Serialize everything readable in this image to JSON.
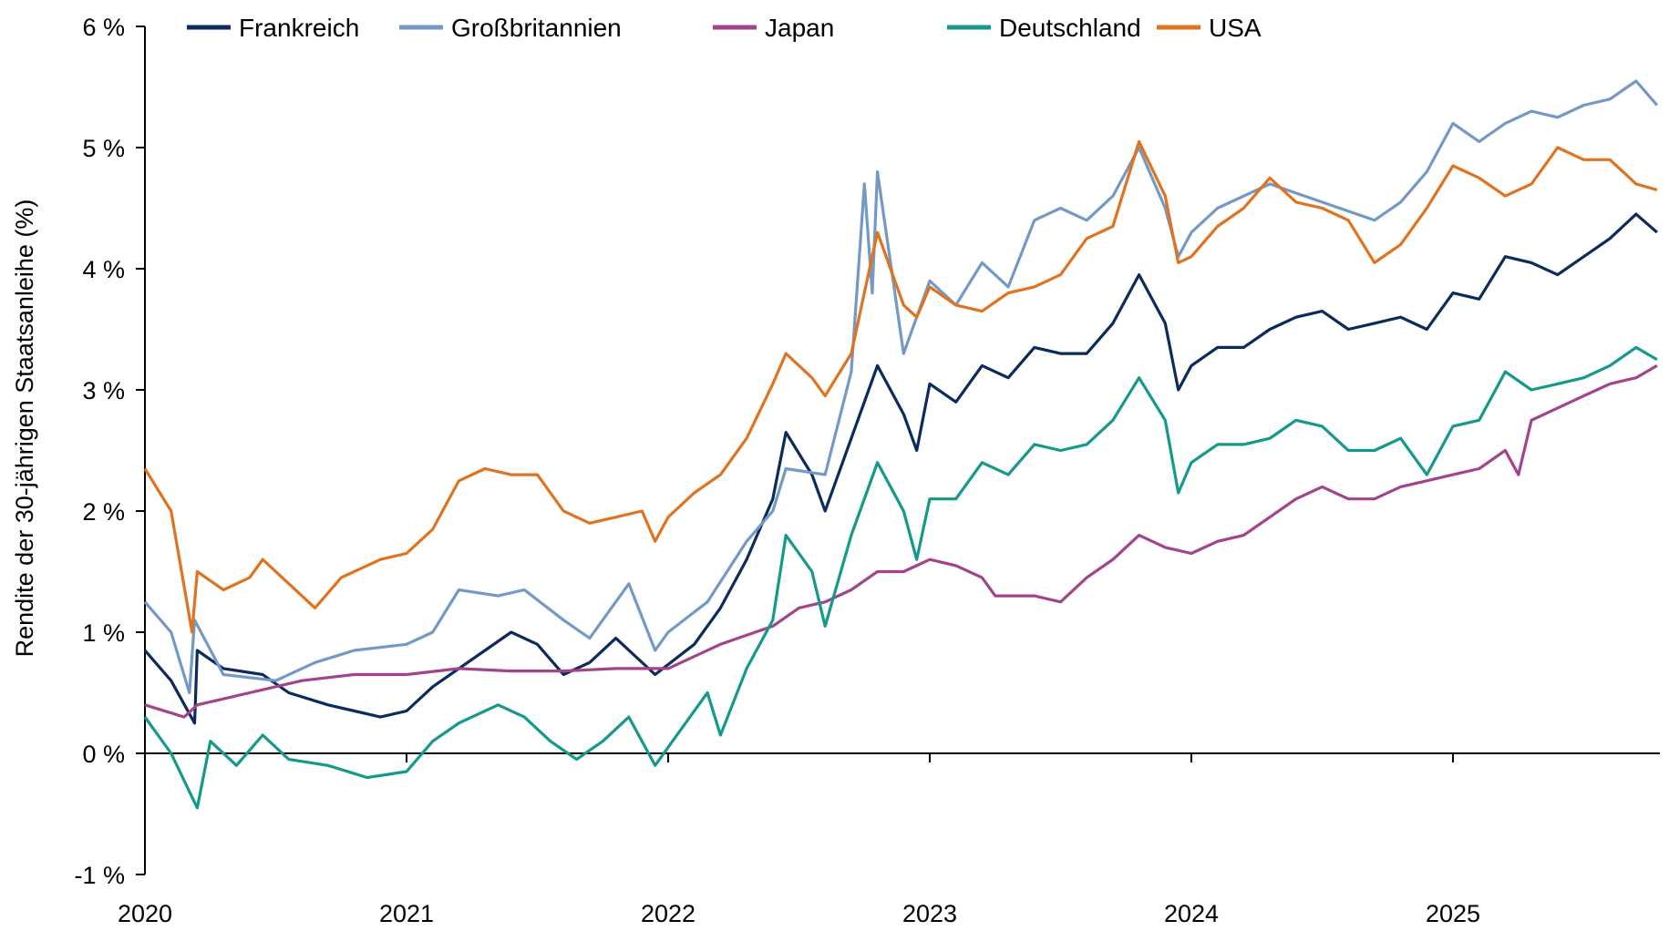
{
  "chart_data": {
    "type": "line",
    "title": "",
    "xlabel": "",
    "ylabel": "Rendite der 30-jährigen Staatsanleihe (%)",
    "ylim": [
      -1,
      6
    ],
    "xlim": [
      2020.0,
      2025.78
    ],
    "y_ticks": [
      {
        "value": 6,
        "label": "6 %"
      },
      {
        "value": 5,
        "label": "5 %"
      },
      {
        "value": 4,
        "label": "4 %"
      },
      {
        "value": 3,
        "label": "3 %"
      },
      {
        "value": 2,
        "label": "2 %"
      },
      {
        "value": 1,
        "label": "1 %"
      },
      {
        "value": 0,
        "label": "0 %"
      },
      {
        "value": -1,
        "label": "-1 %"
      }
    ],
    "x_ticks": [
      {
        "value": 2020,
        "label": "2020"
      },
      {
        "value": 2021,
        "label": "2021"
      },
      {
        "value": 2022,
        "label": "2022"
      },
      {
        "value": 2023,
        "label": "2023"
      },
      {
        "value": 2024,
        "label": "2024"
      },
      {
        "value": 2025,
        "label": "2025"
      }
    ],
    "grid": false,
    "legend_position": "top",
    "series": [
      {
        "name": "Frankreich",
        "color": "#0b2b5c",
        "x": [
          2020.0,
          2020.1,
          2020.19,
          2020.2,
          2020.3,
          2020.45,
          2020.55,
          2020.7,
          2020.9,
          2021.0,
          2021.1,
          2021.2,
          2021.3,
          2021.4,
          2021.5,
          2021.6,
          2021.7,
          2021.8,
          2021.95,
          2022.1,
          2022.2,
          2022.3,
          2022.4,
          2022.45,
          2022.55,
          2022.6,
          2022.7,
          2022.8,
          2022.9,
          2022.95,
          2023.0,
          2023.1,
          2023.2,
          2023.3,
          2023.4,
          2023.5,
          2023.6,
          2023.7,
          2023.8,
          2023.9,
          2023.95,
          2024.0,
          2024.1,
          2024.2,
          2024.3,
          2024.4,
          2024.5,
          2024.6,
          2024.7,
          2024.8,
          2024.9,
          2025.0,
          2025.1,
          2025.2,
          2025.3,
          2025.4,
          2025.5,
          2025.6,
          2025.7,
          2025.78
        ],
        "values": [
          0.85,
          0.6,
          0.25,
          0.85,
          0.7,
          0.65,
          0.5,
          0.4,
          0.3,
          0.35,
          0.55,
          0.7,
          0.85,
          1.0,
          0.9,
          0.65,
          0.75,
          0.95,
          0.65,
          0.9,
          1.2,
          1.6,
          2.1,
          2.65,
          2.3,
          2.0,
          2.6,
          3.2,
          2.8,
          2.5,
          3.05,
          2.9,
          3.2,
          3.1,
          3.35,
          3.3,
          3.3,
          3.55,
          3.95,
          3.55,
          3.0,
          3.2,
          3.35,
          3.35,
          3.5,
          3.6,
          3.65,
          3.5,
          3.55,
          3.6,
          3.5,
          3.8,
          3.75,
          4.1,
          4.05,
          3.95,
          4.1,
          4.25,
          4.45,
          4.3
        ]
      },
      {
        "name": "Großbritannien",
        "color": "#7399c6",
        "x": [
          2020.0,
          2020.1,
          2020.17,
          2020.19,
          2020.3,
          2020.5,
          2020.65,
          2020.8,
          2021.0,
          2021.1,
          2021.2,
          2021.35,
          2021.45,
          2021.6,
          2021.7,
          2021.85,
          2021.95,
          2022.0,
          2022.15,
          2022.3,
          2022.4,
          2022.45,
          2022.6,
          2022.7,
          2022.75,
          2022.78,
          2022.8,
          2022.9,
          2023.0,
          2023.1,
          2023.2,
          2023.3,
          2023.4,
          2023.5,
          2023.6,
          2023.7,
          2023.8,
          2023.9,
          2023.95,
          2024.0,
          2024.1,
          2024.3,
          2024.5,
          2024.7,
          2024.8,
          2024.9,
          2025.0,
          2025.1,
          2025.2,
          2025.3,
          2025.4,
          2025.5,
          2025.6,
          2025.7,
          2025.78
        ],
        "values": [
          1.25,
          1.0,
          0.5,
          1.1,
          0.65,
          0.6,
          0.75,
          0.85,
          0.9,
          1.0,
          1.35,
          1.3,
          1.35,
          1.1,
          0.95,
          1.4,
          0.85,
          1.0,
          1.25,
          1.75,
          2.0,
          2.35,
          2.3,
          3.15,
          4.7,
          3.8,
          4.8,
          3.3,
          3.9,
          3.7,
          4.05,
          3.85,
          4.4,
          4.5,
          4.4,
          4.6,
          5.0,
          4.5,
          4.1,
          4.3,
          4.5,
          4.7,
          4.55,
          4.4,
          4.55,
          4.8,
          5.2,
          5.05,
          5.2,
          5.3,
          5.25,
          5.35,
          5.4,
          5.55,
          5.35
        ]
      },
      {
        "name": "Japan",
        "color": "#a2448c",
        "x": [
          2020.0,
          2020.15,
          2020.2,
          2020.4,
          2020.6,
          2020.8,
          2021.0,
          2021.2,
          2021.4,
          2021.6,
          2021.8,
          2022.0,
          2022.1,
          2022.2,
          2022.4,
          2022.5,
          2022.6,
          2022.7,
          2022.8,
          2022.9,
          2023.0,
          2023.1,
          2023.2,
          2023.25,
          2023.4,
          2023.5,
          2023.6,
          2023.7,
          2023.8,
          2023.9,
          2024.0,
          2024.1,
          2024.2,
          2024.3,
          2024.4,
          2024.5,
          2024.6,
          2024.7,
          2024.8,
          2024.9,
          2025.0,
          2025.1,
          2025.2,
          2025.25,
          2025.3,
          2025.4,
          2025.5,
          2025.6,
          2025.7,
          2025.78
        ],
        "values": [
          0.4,
          0.3,
          0.4,
          0.5,
          0.6,
          0.65,
          0.65,
          0.7,
          0.68,
          0.68,
          0.7,
          0.7,
          0.8,
          0.9,
          1.05,
          1.2,
          1.25,
          1.35,
          1.5,
          1.5,
          1.6,
          1.55,
          1.45,
          1.3,
          1.3,
          1.25,
          1.45,
          1.6,
          1.8,
          1.7,
          1.65,
          1.75,
          1.8,
          1.95,
          2.1,
          2.2,
          2.1,
          2.1,
          2.2,
          2.25,
          2.3,
          2.35,
          2.5,
          2.3,
          2.75,
          2.85,
          2.95,
          3.05,
          3.1,
          3.2
        ]
      },
      {
        "name": "Deutschland",
        "color": "#14998a",
        "x": [
          2020.0,
          2020.1,
          2020.2,
          2020.25,
          2020.35,
          2020.45,
          2020.55,
          2020.7,
          2020.85,
          2021.0,
          2021.1,
          2021.2,
          2021.35,
          2021.45,
          2021.55,
          2021.65,
          2021.75,
          2021.85,
          2021.95,
          2022.05,
          2022.15,
          2022.2,
          2022.3,
          2022.4,
          2022.45,
          2022.55,
          2022.6,
          2022.7,
          2022.8,
          2022.9,
          2022.95,
          2023.0,
          2023.1,
          2023.2,
          2023.3,
          2023.4,
          2023.5,
          2023.6,
          2023.7,
          2023.8,
          2023.9,
          2023.95,
          2024.0,
          2024.1,
          2024.2,
          2024.3,
          2024.4,
          2024.5,
          2024.6,
          2024.7,
          2024.8,
          2024.9,
          2025.0,
          2025.1,
          2025.2,
          2025.3,
          2025.4,
          2025.5,
          2025.6,
          2025.7,
          2025.78
        ],
        "values": [
          0.3,
          0.0,
          -0.45,
          0.1,
          -0.1,
          0.15,
          -0.05,
          -0.1,
          -0.2,
          -0.15,
          0.1,
          0.25,
          0.4,
          0.3,
          0.1,
          -0.05,
          0.1,
          0.3,
          -0.1,
          0.2,
          0.5,
          0.15,
          0.7,
          1.1,
          1.8,
          1.5,
          1.05,
          1.8,
          2.4,
          2.0,
          1.6,
          2.1,
          2.1,
          2.4,
          2.3,
          2.55,
          2.5,
          2.55,
          2.75,
          3.1,
          2.75,
          2.15,
          2.4,
          2.55,
          2.55,
          2.6,
          2.75,
          2.7,
          2.5,
          2.5,
          2.6,
          2.3,
          2.7,
          2.75,
          3.15,
          3.0,
          3.05,
          3.1,
          3.2,
          3.35,
          3.25
        ]
      },
      {
        "name": "USA",
        "color": "#e07320",
        "x": [
          2020.0,
          2020.1,
          2020.18,
          2020.2,
          2020.3,
          2020.4,
          2020.45,
          2020.6,
          2020.65,
          2020.75,
          2020.9,
          2021.0,
          2021.1,
          2021.2,
          2021.3,
          2021.4,
          2021.5,
          2021.6,
          2021.7,
          2021.8,
          2021.9,
          2021.95,
          2022.0,
          2022.1,
          2022.2,
          2022.3,
          2022.4,
          2022.45,
          2022.55,
          2022.6,
          2022.7,
          2022.8,
          2022.9,
          2022.95,
          2023.0,
          2023.1,
          2023.2,
          2023.3,
          2023.4,
          2023.5,
          2023.6,
          2023.7,
          2023.8,
          2023.9,
          2023.95,
          2024.0,
          2024.1,
          2024.2,
          2024.3,
          2024.4,
          2024.5,
          2024.6,
          2024.7,
          2024.8,
          2024.9,
          2025.0,
          2025.1,
          2025.2,
          2025.3,
          2025.4,
          2025.5,
          2025.6,
          2025.7,
          2025.78
        ],
        "values": [
          2.35,
          2.0,
          1.0,
          1.5,
          1.35,
          1.45,
          1.6,
          1.3,
          1.2,
          1.45,
          1.6,
          1.65,
          1.85,
          2.25,
          2.35,
          2.3,
          2.3,
          2.0,
          1.9,
          1.95,
          2.0,
          1.75,
          1.95,
          2.15,
          2.3,
          2.6,
          3.05,
          3.3,
          3.1,
          2.95,
          3.3,
          4.3,
          3.7,
          3.6,
          3.85,
          3.7,
          3.65,
          3.8,
          3.85,
          3.95,
          4.25,
          4.35,
          5.05,
          4.6,
          4.05,
          4.1,
          4.35,
          4.5,
          4.75,
          4.55,
          4.5,
          4.4,
          4.05,
          4.2,
          4.5,
          4.85,
          4.75,
          4.6,
          4.7,
          5.0,
          4.9,
          4.9,
          4.7,
          4.65
        ]
      }
    ]
  },
  "legend": {
    "items": [
      {
        "label": "Frankreich",
        "color": "#0b2b5c"
      },
      {
        "label": "Großbritannien",
        "color": "#7399c6"
      },
      {
        "label": "Japan",
        "color": "#a2448c"
      },
      {
        "label": "Deutschland",
        "color": "#14998a"
      },
      {
        "label": "USA",
        "color": "#e07320"
      }
    ]
  }
}
